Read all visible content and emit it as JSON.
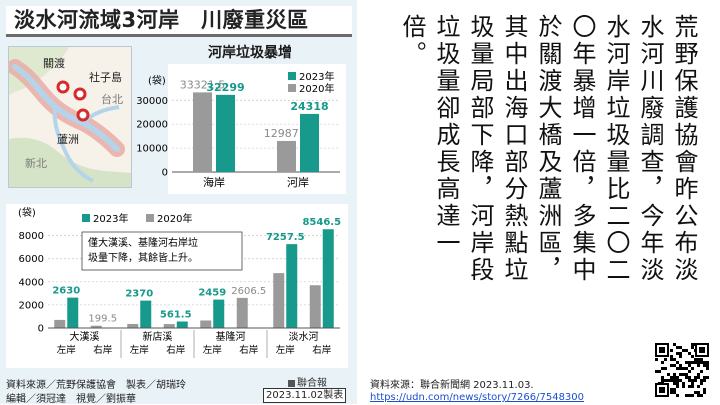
{
  "infographic": {
    "title": "淡水河流域3河岸　川廢重災區",
    "subtitle": "河岸垃圾暴增",
    "map_labels": {
      "guandu": "關渡",
      "shezidao": "社子島",
      "taipei": "台北",
      "luzhou": "蘆洲",
      "new_taipei": "新北"
    },
    "source_lines": [
      "資料來源／荒野保護協會　製表／胡瑞玲",
      "編輯／須冠達　視覺／劉振華"
    ],
    "press": "聯合報",
    "date": "2023.11.02製表"
  },
  "colors": {
    "teal": "#17998c",
    "gray": "#9a9a9a",
    "panel": "#e9f2f7"
  },
  "chart_data": [
    {
      "type": "bar",
      "unit_label": "(袋)",
      "categories": [
        "海岸",
        "河岸"
      ],
      "series": [
        {
          "name": "2023年",
          "values": [
            32299,
            24318
          ]
        },
        {
          "name": "2020年",
          "values": [
            33321.5,
            12987.5
          ]
        }
      ],
      "value_labels": [
        [
          "32299",
          "24318"
        ],
        [
          "33321.5",
          "12987.5"
        ]
      ],
      "yticks": [
        0,
        10000,
        20000,
        30000
      ],
      "ylim": [
        0,
        36000
      ],
      "legend": "top-right"
    },
    {
      "type": "bar",
      "unit_label": "(袋)",
      "groups": [
        "大漢溪",
        "新店溪",
        "基隆河",
        "淡水河"
      ],
      "sides": [
        "左岸",
        "右岸"
      ],
      "series": [
        {
          "name": "2023年",
          "values": [
            2630,
            0,
            2370,
            561.5,
            2459,
            0,
            7257.5,
            8546.5
          ]
        },
        {
          "name": "2020年",
          "values": [
            700,
            199.5,
            350,
            340,
            650,
            2606.5,
            4750,
            3700
          ]
        }
      ],
      "value_labels": [
        "2630",
        "199.5",
        "2370",
        "561.5",
        "2459",
        "2606.5",
        "7257.5",
        "8546.5"
      ],
      "yticks": [
        0,
        2000,
        4000,
        6000,
        8000
      ],
      "ylim": [
        0,
        9000
      ],
      "legend": "top-left",
      "annotation": [
        "僅大漢溪、基隆河右岸垃",
        "圾量下降，其餘皆上升。"
      ]
    }
  ],
  "article": {
    "body": "荒野保護協會昨公布淡水河川廢調查，今年淡水河岸垃圾量比二〇二〇年暴增一倍，多集中於關渡大橋及蘆洲區，其中出海口部分熱點垃圾量局部下降，河岸段垃圾量卻成長高達一倍。",
    "source_label": "資料來源：聯合新聞網 2023.11.03.",
    "url": "https://udn.com/news/story/7266/7548300"
  }
}
